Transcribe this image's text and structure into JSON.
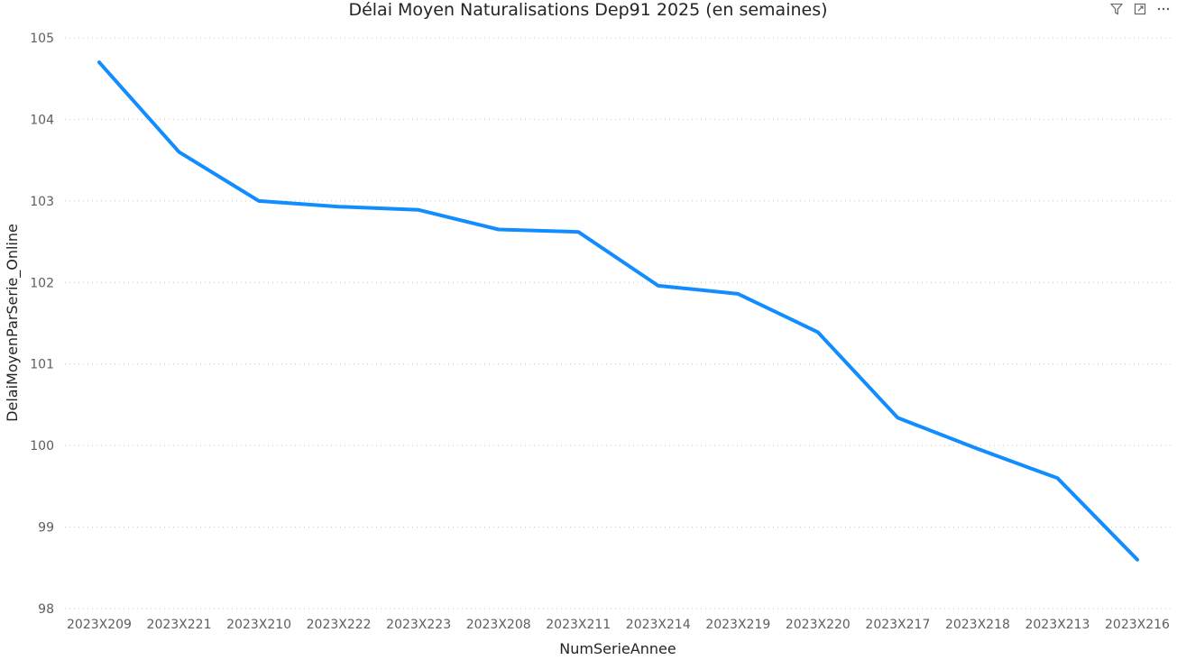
{
  "chart_data": {
    "type": "line",
    "title": "Délai Moyen Naturalisations Dep91 2025 (en semaines)",
    "xlabel": "NumSerieAnnee",
    "ylabel": "DelaiMoyenParSerie_Online",
    "categories": [
      "2023X209",
      "2023X221",
      "2023X210",
      "2023X222",
      "2023X223",
      "2023X208",
      "2023X211",
      "2023X214",
      "2023X219",
      "2023X220",
      "2023X217",
      "2023X218",
      "2023X213",
      "2023X216"
    ],
    "series": [
      {
        "values": [
          104.7,
          103.6,
          103.0,
          102.93,
          102.89,
          102.65,
          102.62,
          101.96,
          101.86,
          101.39,
          100.34,
          99.96,
          99.6,
          98.6
        ]
      }
    ],
    "ylim": [
      98,
      105
    ],
    "yticks": [
      98,
      99,
      100,
      101,
      102,
      103,
      104,
      105
    ],
    "grid": true,
    "legend": "none",
    "line_color": "#118DFF"
  },
  "header": {
    "icons": [
      "filter-icon",
      "focus-mode-icon",
      "more-options-icon"
    ]
  }
}
